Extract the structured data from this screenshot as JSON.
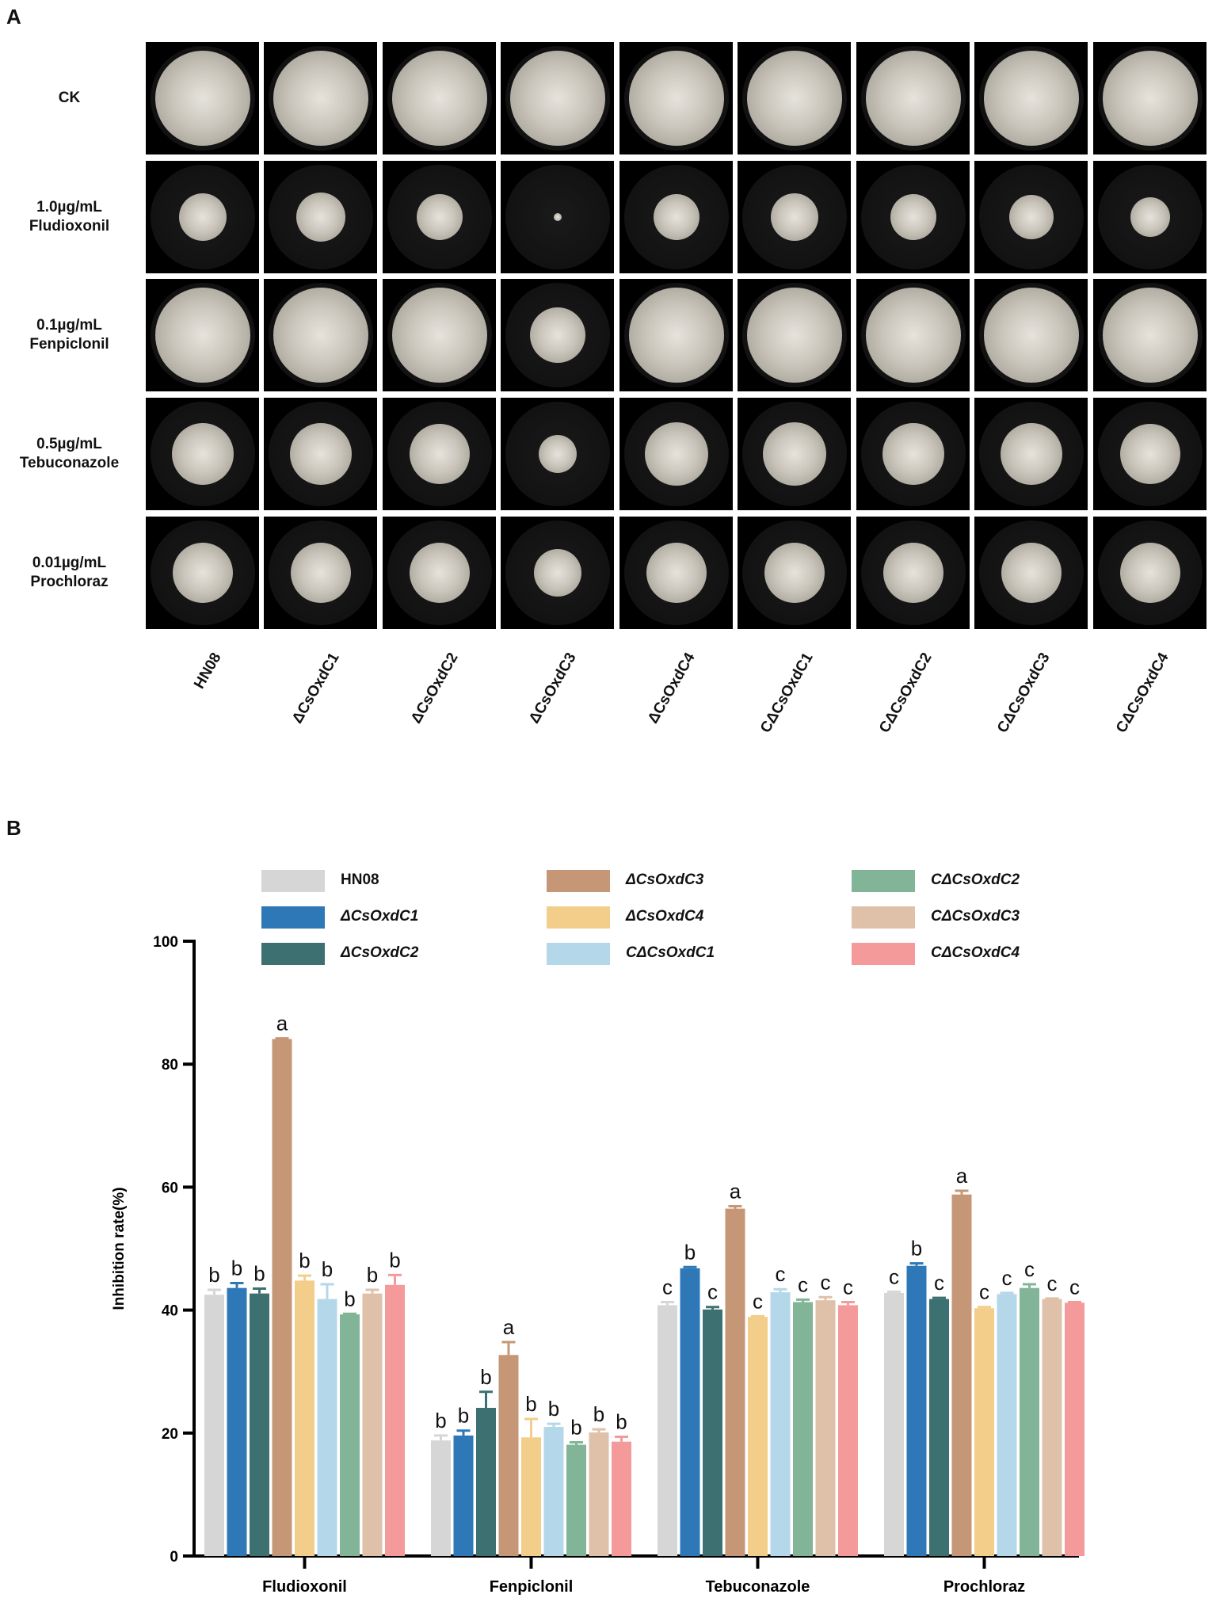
{
  "panel_a": {
    "letter": "A",
    "rows": [
      {
        "line1": "CK",
        "line2": ""
      },
      {
        "line1": "1.0µg/mL",
        "line2": "Fludioxonil"
      },
      {
        "line1": "0.1µg/mL",
        "line2": "Fenpiclonil"
      },
      {
        "line1": "0.5µg/mL",
        "line2": "Tebuconazole"
      },
      {
        "line1": "0.01µg/mL",
        "line2": "Prochloraz"
      }
    ],
    "strains": [
      "HN08",
      "ΔCsOxdC1",
      "ΔCsOxdC2",
      "ΔCsOxdC3",
      "ΔCsOxdC4",
      "CΔCsOxdC1",
      "CΔCsOxdC2",
      "CΔCsOxdC3",
      "CΔCsOxdC4"
    ]
  },
  "panel_b": {
    "letter": "B"
  },
  "chart_data": {
    "type": "bar",
    "title": "",
    "xlabel": "",
    "ylabel": "Inhibition rate(%)",
    "ylim": [
      0,
      100
    ],
    "yticks": [
      0,
      20,
      40,
      60,
      80,
      100
    ],
    "grid": false,
    "legend_position": "top",
    "categories": [
      "Fludioxonil",
      "Fenpiclonil",
      "Tebuconazole",
      "Prochloraz"
    ],
    "series": [
      {
        "name": "HN08",
        "color": "#d6d6d6",
        "values": [
          42.5,
          18.8,
          40.8,
          42.8
        ],
        "errors": [
          0.8,
          0.8,
          0.5,
          0.2
        ],
        "letters": [
          "b",
          "b",
          "c",
          "c"
        ]
      },
      {
        "name": "ΔCsOxdC1",
        "color": "#2e78b8",
        "values": [
          43.6,
          19.6,
          46.8,
          47.2
        ],
        "errors": [
          0.8,
          0.8,
          0.2,
          0.4
        ],
        "letters": [
          "b",
          "b",
          "b",
          "b"
        ]
      },
      {
        "name": "ΔCsOxdC2",
        "color": "#3d7070",
        "values": [
          42.7,
          24.1,
          40.1,
          41.8
        ],
        "errors": [
          0.8,
          2.6,
          0.4,
          0.2
        ],
        "letters": [
          "b",
          "b",
          "c",
          "c"
        ]
      },
      {
        "name": "ΔCsOxdC3",
        "color": "#c69777",
        "values": [
          84.1,
          32.7,
          56.5,
          58.8
        ],
        "errors": [
          0.1,
          2.1,
          0.4,
          0.6
        ],
        "letters": [
          "a",
          "a",
          "a",
          "a"
        ]
      },
      {
        "name": "ΔCsOxdC4",
        "color": "#f3cd8a",
        "values": [
          44.8,
          19.3,
          38.9,
          40.3
        ],
        "errors": [
          0.8,
          3.0,
          0.1,
          0.2
        ],
        "letters": [
          "b",
          "b",
          "c",
          "c"
        ]
      },
      {
        "name": "CΔCsOxdC1",
        "color": "#b5d7ea",
        "values": [
          41.8,
          21.0,
          42.9,
          42.6
        ],
        "errors": [
          2.4,
          0.5,
          0.5,
          0.2
        ],
        "letters": [
          "b",
          "b",
          "c",
          "c"
        ]
      },
      {
        "name": "CΔCsOxdC2",
        "color": "#82b497",
        "values": [
          39.3,
          18.1,
          41.3,
          43.6
        ],
        "errors": [
          0.1,
          0.4,
          0.4,
          0.6
        ],
        "letters": [
          "b",
          "b",
          "c",
          "c"
        ]
      },
      {
        "name": "CΔCsOxdC3",
        "color": "#dfc1aa",
        "values": [
          42.7,
          20.1,
          41.6,
          41.8
        ],
        "errors": [
          0.6,
          0.5,
          0.5,
          0.1
        ],
        "letters": [
          "b",
          "b",
          "c",
          "c"
        ]
      },
      {
        "name": "CΔCsOxdC4",
        "color": "#f59a9b",
        "values": [
          44.1,
          18.6,
          40.8,
          41.2
        ],
        "errors": [
          1.6,
          0.8,
          0.5,
          0.1
        ],
        "letters": [
          "b",
          "b",
          "c",
          "c"
        ]
      }
    ]
  }
}
